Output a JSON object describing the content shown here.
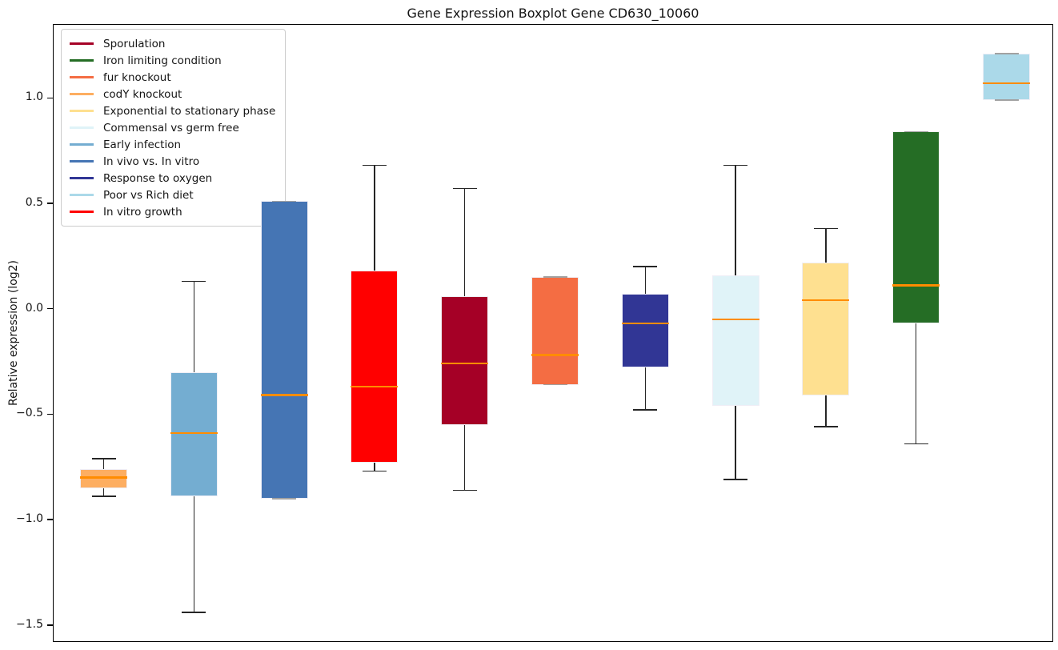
{
  "chart_data": {
    "type": "boxplot",
    "title": "Gene Expression Boxplot Gene CD630_10060",
    "ylabel": "Relative expression (log2)",
    "xlabel": "",
    "ylim": [
      -1.58,
      1.35
    ],
    "yticks": [
      1.0,
      0.5,
      0.0,
      -0.5,
      -1.0,
      -1.5
    ],
    "ytick_labels": [
      "1.0",
      "0.5",
      "0.0",
      "−0.5",
      "−1.0",
      "−1.5"
    ],
    "xtick_labels": [],
    "grid": false,
    "median_color": "#FF8C00",
    "legend_position": "upper left",
    "legend_order": [
      "Sporulation",
      "Iron limiting condition",
      "fur knockout",
      "codY knockout",
      "Exponential to stationary phase",
      "Commensal vs germ free",
      "Early infection",
      "In vivo vs. In vitro",
      "Response to oxygen",
      "Poor vs Rich diet",
      "In vitro growth"
    ],
    "series": [
      {
        "name": "codY knockout",
        "color": "#FDAE61",
        "whisker_low": -0.89,
        "q1": -0.85,
        "median": -0.8,
        "q3": -0.76,
        "whisker_high": -0.71
      },
      {
        "name": "Early infection",
        "color": "#74ADD1",
        "whisker_low": -1.44,
        "q1": -0.89,
        "median": -0.59,
        "q3": -0.3,
        "whisker_high": 0.13
      },
      {
        "name": "In vivo vs. In vitro",
        "color": "#4575B4",
        "whisker_low": -0.9,
        "q1": -0.9,
        "median": -0.41,
        "q3": 0.51,
        "whisker_high": 0.51
      },
      {
        "name": "In vitro growth",
        "color": "#FF0000",
        "whisker_low": -0.77,
        "q1": -0.73,
        "median": -0.37,
        "q3": 0.18,
        "whisker_high": 0.68
      },
      {
        "name": "Sporulation",
        "color": "#A50026",
        "whisker_low": -0.86,
        "q1": -0.55,
        "median": -0.26,
        "q3": 0.06,
        "whisker_high": 0.57
      },
      {
        "name": "fur knockout",
        "color": "#F46D43",
        "whisker_low": -0.36,
        "q1": -0.36,
        "median": -0.22,
        "q3": 0.15,
        "whisker_high": 0.15
      },
      {
        "name": "Response to oxygen",
        "color": "#313695",
        "whisker_low": -0.48,
        "q1": -0.28,
        "median": -0.07,
        "q3": 0.07,
        "whisker_high": 0.2
      },
      {
        "name": "Commensal vs germ free",
        "color": "#E0F3F8",
        "whisker_low": -0.81,
        "q1": -0.46,
        "median": -0.05,
        "q3": 0.16,
        "whisker_high": 0.68
      },
      {
        "name": "Exponential to stationary phase",
        "color": "#FEE090",
        "whisker_low": -0.56,
        "q1": -0.41,
        "median": 0.04,
        "q3": 0.22,
        "whisker_high": 0.38
      },
      {
        "name": "Iron limiting condition",
        "color": "#256D25",
        "whisker_low": -0.64,
        "q1": -0.07,
        "median": 0.11,
        "q3": 0.84,
        "whisker_high": 0.84
      },
      {
        "name": "Poor vs Rich diet",
        "color": "#ABD9E9",
        "whisker_low": 0.99,
        "q1": 0.99,
        "median": 1.07,
        "q3": 1.21,
        "whisker_high": 1.21
      }
    ]
  }
}
